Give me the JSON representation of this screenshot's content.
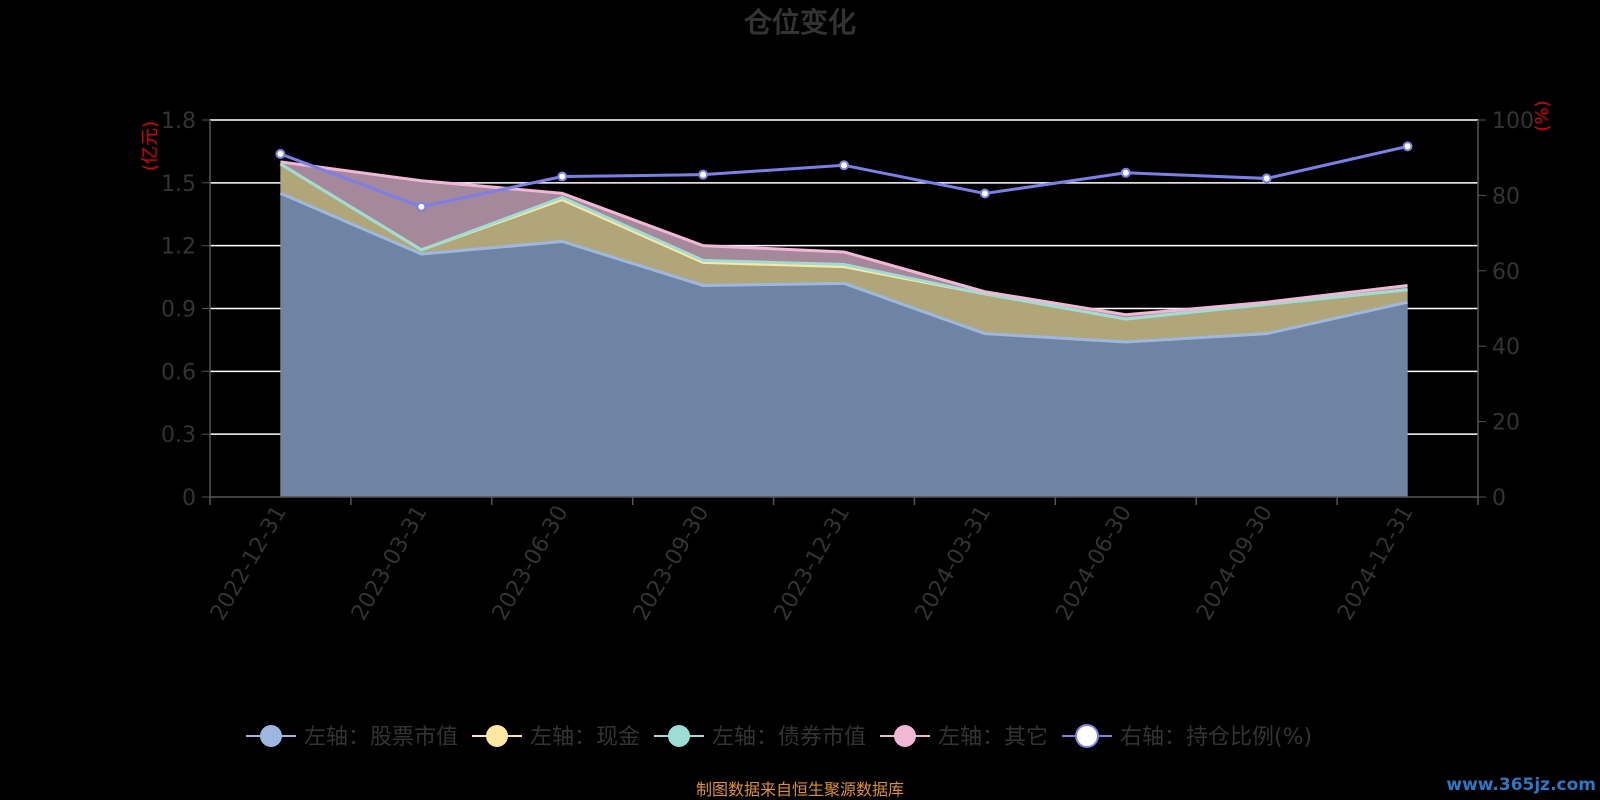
{
  "chart_data": {
    "type": "area",
    "title": "仓位变化",
    "categories": [
      "2022-12-31",
      "2023-03-31",
      "2023-06-30",
      "2023-09-30",
      "2023-12-31",
      "2024-03-31",
      "2024-06-30",
      "2024-09-30",
      "2024-12-31"
    ],
    "left_axis": {
      "unit": "(亿元)",
      "ylim": [
        0,
        1.8
      ],
      "ticks": [
        0,
        0.3,
        0.6,
        0.9,
        1.2,
        1.5,
        1.8
      ],
      "tick_labels": [
        "0",
        "0.3",
        "0.6",
        "0.9",
        "1.2",
        "1.5",
        "1.8"
      ]
    },
    "right_axis": {
      "unit": "(%)",
      "ylim": [
        0,
        100
      ],
      "ticks": [
        0,
        20,
        40,
        60,
        80,
        100
      ],
      "tick_labels": [
        "0",
        "20",
        "40",
        "60",
        "80",
        "100"
      ]
    },
    "grid": true,
    "legend_position": "bottom",
    "series": [
      {
        "name": "左轴：股票市值",
        "axis": "left",
        "kind": "area",
        "color": "#9db8e0",
        "fill": "#6f84a2",
        "values": [
          1.45,
          1.16,
          1.22,
          1.01,
          1.02,
          0.78,
          0.74,
          0.78,
          0.93
        ]
      },
      {
        "name": "左轴：现金",
        "axis": "left",
        "kind": "area",
        "color": "#fce8a0",
        "fill": "#b0a67a",
        "values": [
          1.59,
          1.18,
          1.42,
          1.12,
          1.1,
          0.97,
          0.85,
          0.92,
          0.99
        ]
      },
      {
        "name": "左轴：债券市值",
        "axis": "left",
        "kind": "area",
        "color": "#9edcd6",
        "fill": "#a0b0a8",
        "values": [
          1.59,
          1.18,
          1.43,
          1.13,
          1.11,
          0.97,
          0.85,
          0.92,
          0.99
        ]
      },
      {
        "name": "左轴：其它",
        "axis": "left",
        "kind": "area",
        "color": "#f0b8d4",
        "fill": "#a5889a",
        "values": [
          1.6,
          1.51,
          1.45,
          1.2,
          1.17,
          0.98,
          0.87,
          0.93,
          1.01
        ]
      },
      {
        "name": "右轴：持仓比例(%)",
        "axis": "right",
        "kind": "line",
        "color": "#7b7fe8",
        "values": [
          91,
          77,
          85,
          85.5,
          88,
          80.5,
          86,
          84.5,
          93
        ]
      }
    ]
  },
  "footer": {
    "source": "制图数据来自恒生聚源数据库",
    "watermark": "www.365jz.com"
  }
}
